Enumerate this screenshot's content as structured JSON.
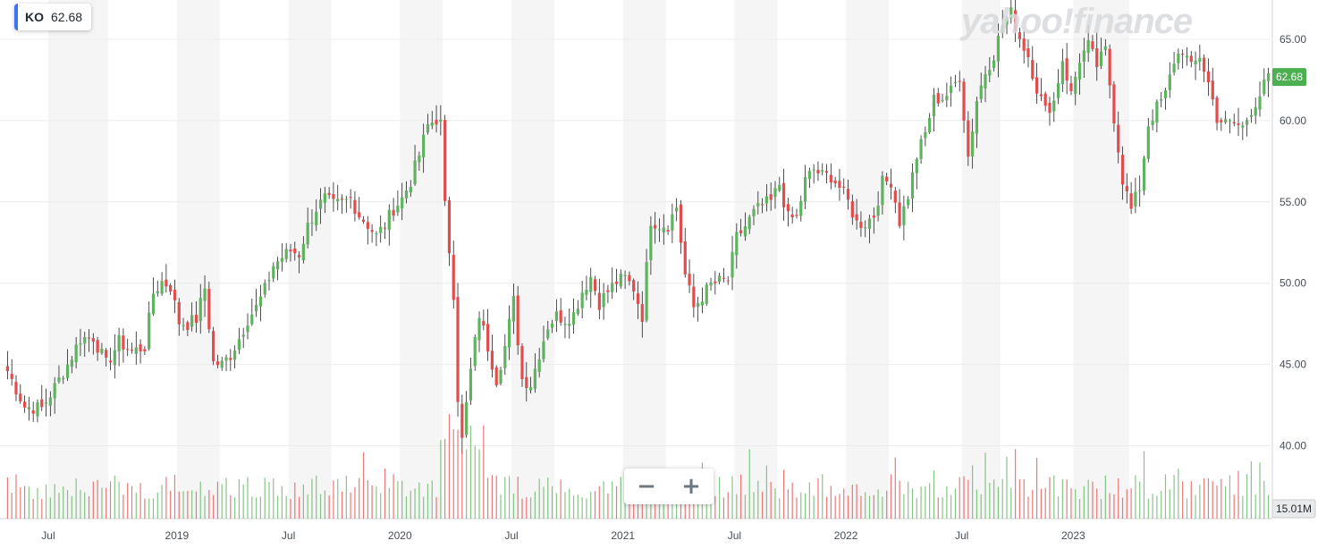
{
  "ticker": {
    "symbol": "KO",
    "last": "62.68"
  },
  "watermark": "yahoo!finance",
  "zoom": {
    "out_label": "−",
    "in_label": "+"
  },
  "colors": {
    "up": "#5fb25f",
    "down": "#e34c4c",
    "price_tag": "#4caf50",
    "volume_tag": "#6e7780"
  },
  "chart_data": {
    "type": "candlestick",
    "title": "",
    "ylim": [
      38.5,
      67
    ],
    "y_ticks": [
      "65.00",
      "60.00",
      "55.00",
      "50.00",
      "45.00",
      "40.00"
    ],
    "x_ticks": [
      "Jul",
      "2019",
      "Jul",
      "2020",
      "Jul",
      "2021",
      "Jul",
      "2022",
      "Jul",
      "2023"
    ],
    "last_price_label": "62.68",
    "volume_label": "15.01M",
    "close_path": [
      [
        0,
        44.6
      ],
      [
        4,
        42.4
      ],
      [
        8,
        42.3
      ],
      [
        11,
        43.6
      ],
      [
        14,
        45.0
      ],
      [
        17,
        46.6
      ],
      [
        20,
        46.7
      ],
      [
        23,
        45.0
      ],
      [
        26,
        46.4
      ],
      [
        29,
        45.8
      ],
      [
        32,
        46.1
      ],
      [
        34,
        49.4
      ],
      [
        36,
        50.1
      ],
      [
        38,
        49.8
      ],
      [
        40,
        47.6
      ],
      [
        42,
        47.5
      ],
      [
        44,
        47.8
      ],
      [
        46,
        49.7
      ],
      [
        48,
        45.1
      ],
      [
        50,
        45.0
      ],
      [
        52,
        45.6
      ],
      [
        54,
        46.6
      ],
      [
        56,
        47.8
      ],
      [
        58,
        48.5
      ],
      [
        60,
        49.6
      ],
      [
        62,
        51.1
      ],
      [
        64,
        51.6
      ],
      [
        66,
        52.0
      ],
      [
        68,
        51.8
      ],
      [
        70,
        53.5
      ],
      [
        72,
        54.6
      ],
      [
        74,
        55.2
      ],
      [
        76,
        54.8
      ],
      [
        78,
        54.9
      ],
      [
        80,
        55.2
      ],
      [
        82,
        54.2
      ],
      [
        84,
        53.6
      ],
      [
        86,
        52.9
      ],
      [
        88,
        53.6
      ],
      [
        90,
        54.6
      ],
      [
        92,
        55.2
      ],
      [
        94,
        56.3
      ],
      [
        96,
        57.9
      ],
      [
        98,
        59.7
      ],
      [
        100,
        60.1
      ],
      [
        101,
        59.8
      ],
      [
        102,
        54.7
      ],
      [
        104,
        49.4
      ],
      [
        105,
        43.0
      ],
      [
        106,
        40.3
      ],
      [
        107,
        42.5
      ],
      [
        108,
        44.6
      ],
      [
        110,
        48.1
      ],
      [
        112,
        46.1
      ],
      [
        114,
        44.1
      ],
      [
        116,
        46.1
      ],
      [
        118,
        48.9
      ],
      [
        120,
        44.1
      ],
      [
        122,
        43.8
      ],
      [
        124,
        45.7
      ],
      [
        126,
        47.4
      ],
      [
        128,
        48.0
      ],
      [
        130,
        47.8
      ],
      [
        132,
        48.1
      ],
      [
        134,
        49.5
      ],
      [
        136,
        50.4
      ],
      [
        138,
        48.8
      ],
      [
        140,
        49.5
      ],
      [
        142,
        50.1
      ],
      [
        144,
        50.3
      ],
      [
        146,
        49.7
      ],
      [
        148,
        48.0
      ],
      [
        150,
        53.9
      ],
      [
        152,
        53.6
      ],
      [
        154,
        53.6
      ],
      [
        156,
        54.7
      ],
      [
        158,
        50.5
      ],
      [
        160,
        48.5
      ],
      [
        162,
        49.2
      ],
      [
        164,
        49.9
      ],
      [
        166,
        50.1
      ],
      [
        168,
        50.2
      ],
      [
        170,
        52.8
      ],
      [
        172,
        53.5
      ],
      [
        174,
        54.3
      ],
      [
        176,
        54.8
      ],
      [
        178,
        55.0
      ],
      [
        180,
        56.1
      ],
      [
        182,
        54.0
      ],
      [
        184,
        54.0
      ],
      [
        186,
        56.3
      ],
      [
        188,
        57.0
      ],
      [
        190,
        56.6
      ],
      [
        192,
        56.6
      ],
      [
        194,
        55.9
      ],
      [
        196,
        55.0
      ],
      [
        198,
        53.7
      ],
      [
        200,
        53.7
      ],
      [
        202,
        54.2
      ],
      [
        204,
        56.2
      ],
      [
        206,
        56.3
      ],
      [
        208,
        53.8
      ],
      [
        210,
        55.4
      ],
      [
        212,
        57.8
      ],
      [
        214,
        59.2
      ],
      [
        216,
        61.3
      ],
      [
        218,
        61.4
      ],
      [
        220,
        61.8
      ],
      [
        222,
        62.8
      ],
      [
        224,
        57.8
      ],
      [
        226,
        61.3
      ],
      [
        228,
        63.0
      ],
      [
        230,
        64.1
      ],
      [
        232,
        65.9
      ],
      [
        234,
        66.6
      ],
      [
        236,
        65.1
      ],
      [
        238,
        64.0
      ],
      [
        240,
        62.0
      ],
      [
        242,
        60.6
      ],
      [
        244,
        61.2
      ],
      [
        246,
        63.8
      ],
      [
        248,
        61.6
      ],
      [
        250,
        63.8
      ],
      [
        252,
        64.6
      ],
      [
        254,
        63.4
      ],
      [
        256,
        64.3
      ],
      [
        258,
        60.2
      ],
      [
        260,
        56.4
      ],
      [
        262,
        54.5
      ],
      [
        264,
        55.9
      ],
      [
        266,
        59.8
      ],
      [
        268,
        60.8
      ],
      [
        270,
        61.6
      ],
      [
        272,
        63.7
      ],
      [
        274,
        64.4
      ],
      [
        276,
        63.2
      ],
      [
        278,
        64.0
      ],
      [
        280,
        62.3
      ],
      [
        282,
        60.2
      ],
      [
        284,
        59.8
      ],
      [
        286,
        59.8
      ],
      [
        288,
        59.6
      ],
      [
        290,
        60.7
      ],
      [
        292,
        61.6
      ],
      [
        294,
        62.68
      ]
    ],
    "candle_count": 295,
    "x_tick_index": [
      10,
      40,
      66,
      92,
      118,
      144,
      170,
      196,
      223,
      249
    ],
    "shaded_bands": [
      [
        10,
        24
      ],
      [
        40,
        50
      ],
      [
        66,
        76
      ],
      [
        92,
        102
      ],
      [
        118,
        128
      ],
      [
        144,
        154
      ],
      [
        170,
        180
      ],
      [
        196,
        206
      ],
      [
        223,
        232
      ],
      [
        249,
        262
      ]
    ]
  }
}
